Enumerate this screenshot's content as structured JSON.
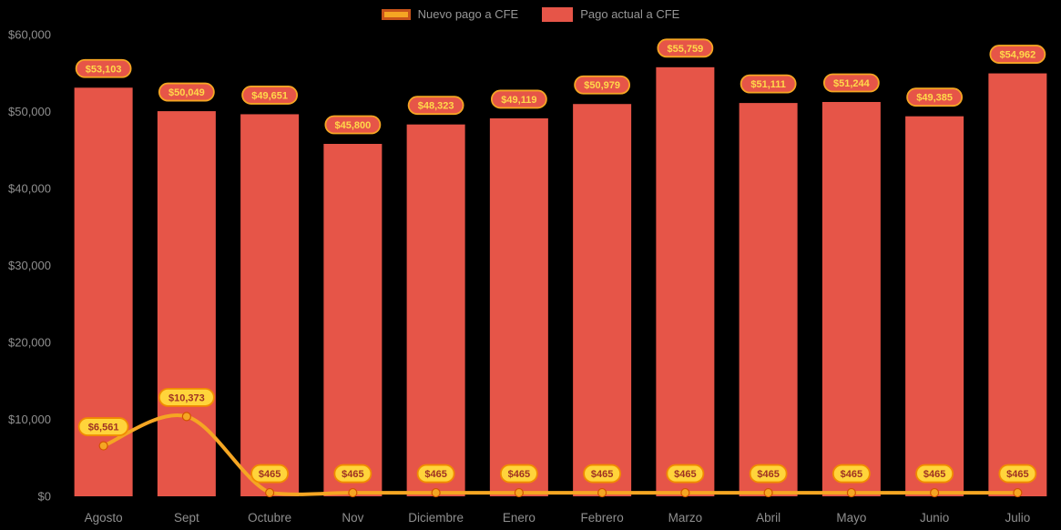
{
  "legend": {
    "items": [
      {
        "label": "Nuevo pago a CFE"
      },
      {
        "label": "Pago actual a CFE"
      }
    ]
  },
  "colors": {
    "background": "#000000",
    "bar": "#E65548",
    "line": "#F5A623",
    "marker_stroke": "#D35400",
    "bar_pill_fill": "#E65548",
    "bar_pill_stroke": "#F5A623",
    "bar_pill_text": "#FFD94A",
    "line_pill_fill": "#FFD43B",
    "line_pill_stroke": "#F08C00",
    "line_pill_text": "#9E3123",
    "axis_text": "#8F8F8F",
    "legend_text": "#969696",
    "legend_line_swatch_border": "#C9541A"
  },
  "chart_data": {
    "type": "bar+line",
    "title": "",
    "xlabel": "",
    "ylabel": "",
    "grid": false,
    "legend_position": "top",
    "categories": [
      "Agosto",
      "Sept",
      "Octubre",
      "Nov",
      "Diciembre",
      "Enero",
      "Febrero",
      "Marzo",
      "Abril",
      "Mayo",
      "Junio",
      "Julio"
    ],
    "ylim": [
      0,
      60000
    ],
    "yticks": {
      "values": [
        0,
        10000,
        20000,
        30000,
        40000,
        50000,
        60000
      ],
      "labels": [
        "$0",
        "$10,000",
        "$20,000",
        "$30,000",
        "$40,000",
        "$50,000",
        "$60,000"
      ]
    },
    "series": [
      {
        "name": "Nuevo pago a CFE",
        "type": "line",
        "color": "#F5A623",
        "values": [
          6561,
          10373,
          465,
          465,
          465,
          465,
          465,
          465,
          465,
          465,
          465,
          465
        ],
        "labels": [
          "$6,561",
          "$10,373",
          "$465",
          "$465",
          "$465",
          "$465",
          "$465",
          "$465",
          "$465",
          "$465",
          "$465",
          "$465"
        ]
      },
      {
        "name": "Pago actual a CFE",
        "type": "bar",
        "color": "#E65548",
        "values": [
          53103,
          50049,
          49651,
          45800,
          48323,
          49119,
          50979,
          55759,
          51111,
          51244,
          49385,
          54962
        ],
        "labels": [
          "$53,103",
          "$50,049",
          "$49,651",
          "$45,800",
          "$48,323",
          "$49,119",
          "$50,979",
          "$55,759",
          "$51,111",
          "$51,244",
          "$49,385",
          "$54,962"
        ]
      }
    ]
  }
}
